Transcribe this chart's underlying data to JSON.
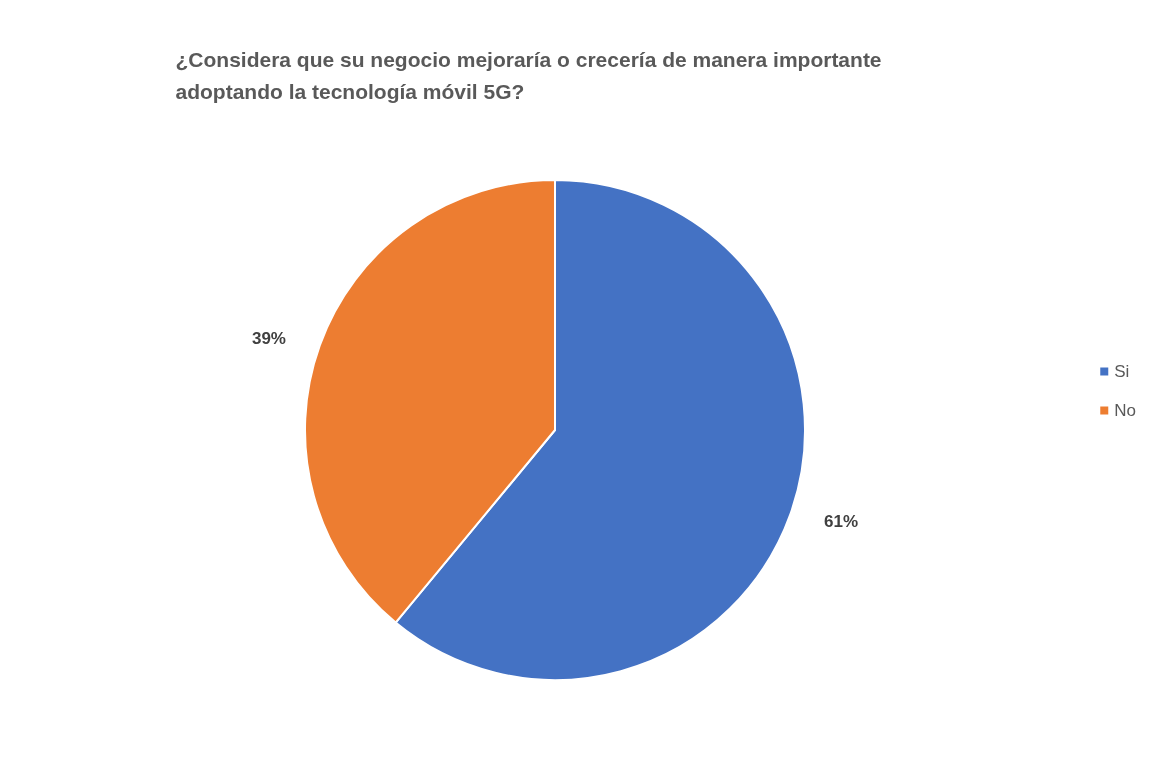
{
  "chart_data": {
    "type": "pie",
    "title": "¿Considera que su negocio mejoraría o crecería de manera importante adoptando la tecnología móvil 5G?",
    "categories": [
      "Si",
      "No"
    ],
    "values": [
      61,
      39
    ],
    "colors": [
      "#4472c4",
      "#ed7d31"
    ],
    "value_labels": [
      "61%",
      "39%"
    ],
    "legend": "right"
  }
}
